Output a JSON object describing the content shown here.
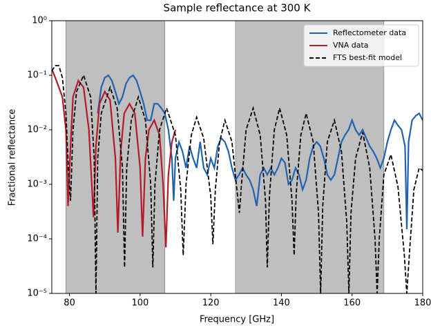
{
  "chart_data": {
    "type": "line",
    "title": "Sample reflectance at 300 K",
    "x_label": "Frequency [GHz]",
    "y_label": "Fractional reflectance",
    "yscale": "log",
    "legend": "upper right",
    "xlim": [
      75,
      180
    ],
    "xticks": [
      80,
      100,
      120,
      140,
      160,
      180
    ],
    "ylim": [
      1e-05,
      1
    ],
    "yticks": [
      {
        "value": 1e-05,
        "label": "10⁻⁵"
      },
      {
        "value": 0.0001,
        "label": "10⁻⁴"
      },
      {
        "value": 0.001,
        "label": "10⁻³"
      },
      {
        "value": 0.01,
        "label": "10⁻²"
      },
      {
        "value": 0.1,
        "label": "10⁻¹"
      },
      {
        "value": 1,
        "label": "10⁰"
      }
    ],
    "shaded_regions": [
      [
        79,
        107
      ],
      [
        127,
        169
      ]
    ],
    "shade_color": "#bfbfbf",
    "series": [
      {
        "name": "Reflectometer data",
        "color": "#1f62b0",
        "style": "solid",
        "x": [
          88,
          89,
          90,
          91,
          92,
          93,
          94,
          95,
          96,
          97,
          98,
          99,
          100,
          101,
          102,
          103,
          104,
          105,
          106,
          107,
          108,
          109,
          109.5,
          110,
          111,
          112,
          113,
          114,
          115,
          116,
          117,
          118,
          119,
          120,
          121,
          122,
          123,
          124,
          125,
          126,
          127,
          128,
          129,
          130,
          131,
          132,
          133,
          134,
          135,
          136,
          137,
          138,
          139,
          140,
          141,
          142,
          143,
          144,
          145,
          146,
          147,
          148,
          149,
          150,
          151,
          152,
          153,
          154,
          155,
          156,
          157,
          158,
          159,
          160,
          161,
          162,
          163,
          164,
          165,
          166,
          167,
          168,
          169,
          170,
          171,
          172,
          173,
          174,
          175,
          175.5,
          176,
          177,
          178,
          179,
          180
        ],
        "values": [
          0.02,
          0.06,
          0.09,
          0.1,
          0.08,
          0.05,
          0.03,
          0.04,
          0.07,
          0.09,
          0.1,
          0.08,
          0.05,
          0.03,
          0.015,
          0.015,
          0.03,
          0.03,
          0.025,
          0.02,
          0.01,
          0.003,
          0.0005,
          0.003,
          0.006,
          0.004,
          0.002,
          0.005,
          0.003,
          0.002,
          0.006,
          0.002,
          0.0015,
          0.003,
          0.002,
          0.005,
          0.007,
          0.006,
          0.004,
          0.002,
          0.0012,
          0.0015,
          0.002,
          0.0015,
          0.0012,
          0.0008,
          0.0004,
          0.0015,
          0.002,
          0.0015,
          0.002,
          0.0015,
          0.002,
          0.003,
          0.0025,
          0.001,
          0.0012,
          0.002,
          0.0015,
          0.0008,
          0.0012,
          0.003,
          0.005,
          0.006,
          0.005,
          0.003,
          0.0015,
          0.0012,
          0.0015,
          0.003,
          0.006,
          0.008,
          0.01,
          0.015,
          0.01,
          0.008,
          0.01,
          0.007,
          0.005,
          0.004,
          0.003,
          0.002,
          0.003,
          0.006,
          0.01,
          0.015,
          0.012,
          0.01,
          0.005,
          0.00015,
          0.006,
          0.015,
          0.018,
          0.02,
          0.015
        ]
      },
      {
        "name": "VNA data",
        "color": "#b5192b",
        "style": "solid",
        "x": [
          75,
          76,
          77,
          78,
          79,
          79.6,
          80.3,
          81,
          82.5,
          84,
          85.5,
          86.8,
          87.5,
          88.5,
          90,
          91.5,
          93,
          93.7,
          94.5,
          95.5,
          97,
          98.5,
          100,
          100.7,
          101.5,
          102.5,
          104,
          105.5,
          106.5,
          107.3,
          108,
          109,
          110
        ],
        "values": [
          0.13,
          0.09,
          0.06,
          0.04,
          0.01,
          0.0004,
          0.005,
          0.04,
          0.08,
          0.06,
          0.01,
          0.00025,
          0.005,
          0.03,
          0.05,
          0.035,
          0.003,
          0.00013,
          0.004,
          0.02,
          0.03,
          0.02,
          0.002,
          0.00011,
          0.003,
          0.01,
          0.015,
          0.008,
          0.001,
          7e-05,
          0.0015,
          0.006,
          0.01
        ]
      },
      {
        "name": "FTS best-fit model",
        "color": "#000000",
        "style": "dashed",
        "x": [
          75,
          76,
          77,
          78,
          79,
          79.7,
          80.3,
          81,
          82,
          84,
          86,
          87,
          87.5,
          88,
          89,
          91.5,
          93.5,
          95,
          95.6,
          96.2,
          97.5,
          99.5,
          101.5,
          103,
          103.6,
          104.2,
          105.5,
          107.5,
          110,
          111.5,
          112.2,
          113,
          114.5,
          116,
          118,
          120,
          120.6,
          121.3,
          122.5,
          124,
          126,
          127.6,
          128.1,
          128.7,
          130,
          132,
          134,
          135.5,
          136,
          136.6,
          138,
          139.5,
          141.5,
          143,
          143.6,
          144.2,
          145.5,
          147,
          149,
          150.5,
          151.1,
          151.7,
          153,
          155,
          157,
          158.5,
          159.1,
          159.7,
          161,
          163,
          165,
          166.5,
          167.1,
          167.7,
          169,
          171,
          173,
          174.8,
          175.5,
          176.2,
          177.5,
          179,
          180
        ],
        "values": [
          0.12,
          0.15,
          0.15,
          0.09,
          0.02,
          0.002,
          0.0005,
          0.01,
          0.05,
          0.1,
          0.04,
          0.003,
          1e-05,
          0.003,
          0.02,
          0.06,
          0.025,
          0.002,
          3e-05,
          0.002,
          0.015,
          0.04,
          0.015,
          0.001,
          3e-05,
          0.001,
          0.01,
          0.025,
          0.008,
          0.0008,
          5e-05,
          0.001,
          0.008,
          0.017,
          0.007,
          0.0006,
          8e-05,
          0.0008,
          0.006,
          0.015,
          0.006,
          0.0006,
          0.0003,
          0.001,
          0.01,
          0.025,
          0.008,
          0.0005,
          3e-05,
          0.0006,
          0.01,
          0.025,
          0.008,
          0.0005,
          5e-05,
          0.0007,
          0.008,
          0.02,
          0.006,
          0.0003,
          1e-05,
          0.0004,
          0.006,
          0.015,
          0.004,
          0.0002,
          1e-05,
          0.0003,
          0.003,
          0.009,
          0.002,
          0.0001,
          1e-05,
          0.0001,
          0.0015,
          0.0035,
          0.0009,
          5e-05,
          1e-05,
          5e-05,
          0.0008,
          0.002,
          0.0018
        ]
      }
    ]
  }
}
